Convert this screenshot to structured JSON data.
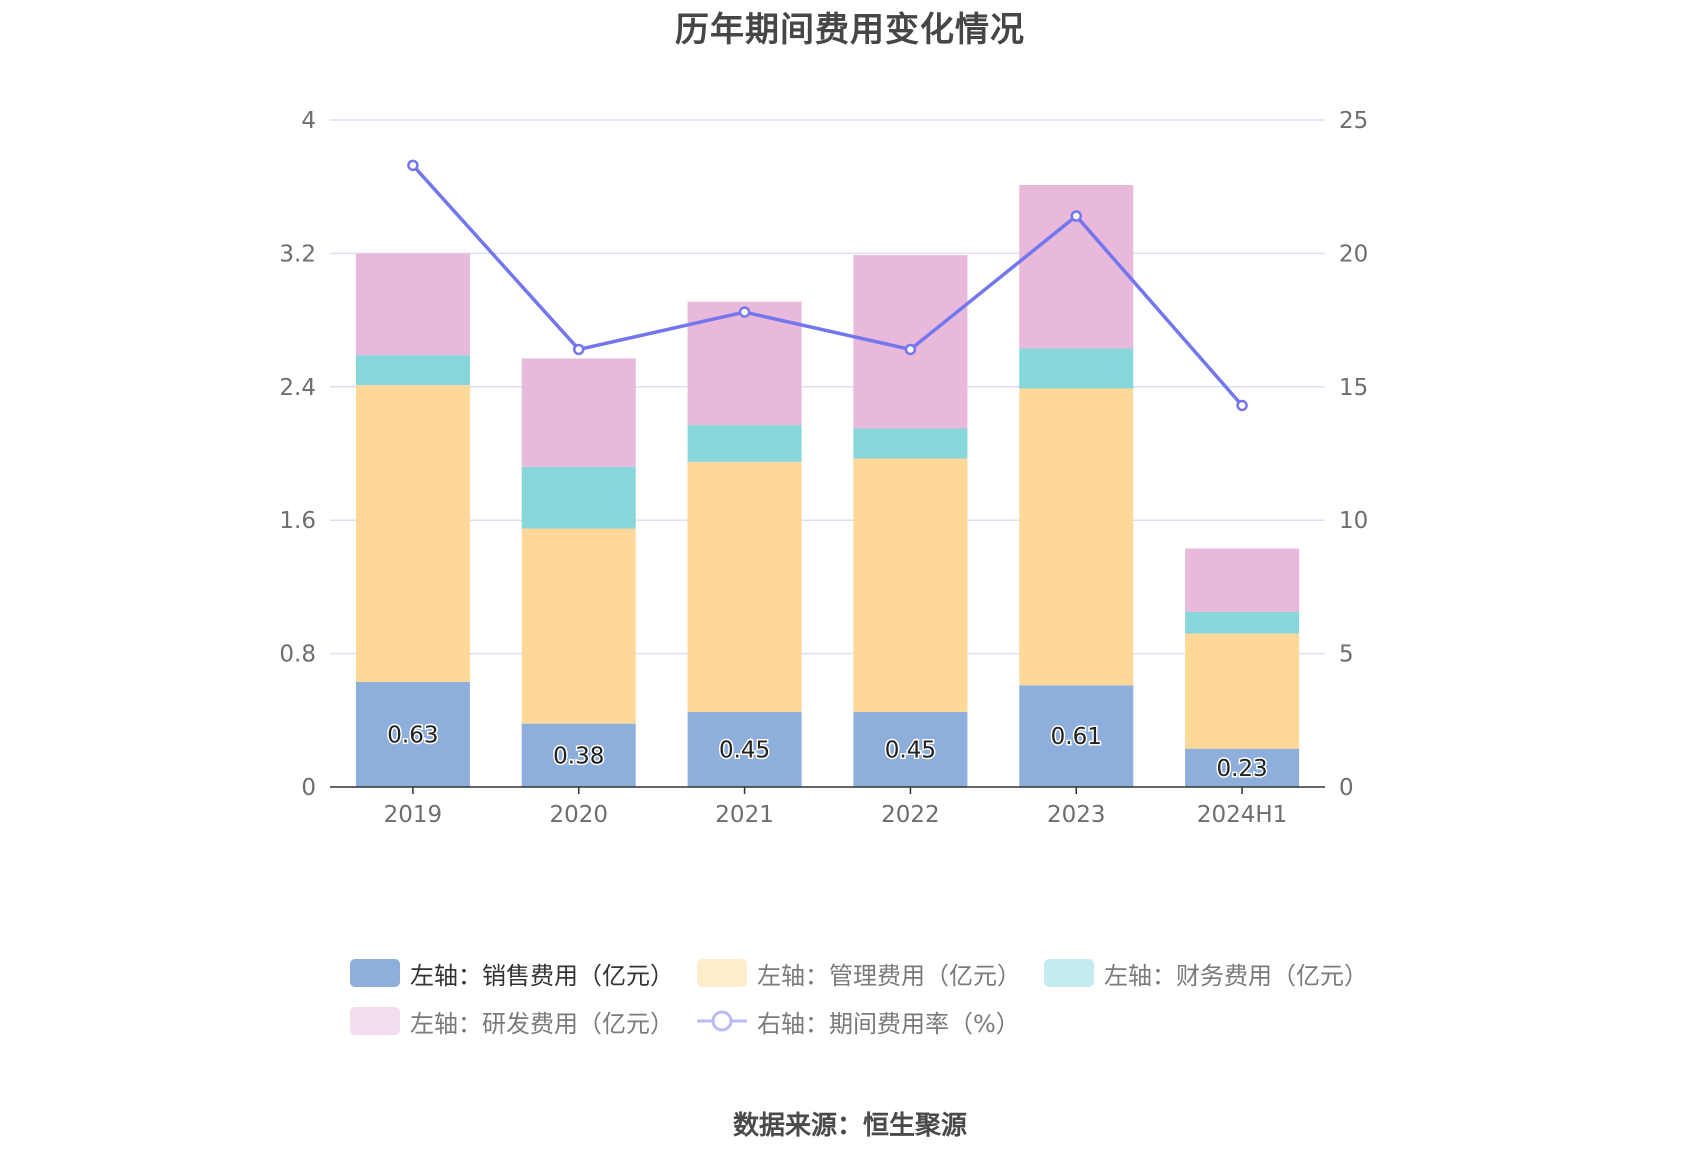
{
  "title": "历年期间费用变化情况",
  "source": "数据来源：恒生聚源",
  "colors": {
    "sales": "#8eaedb",
    "admin": "#fed899",
    "finance": "#87d6da",
    "rd": "#e8b9da",
    "rate": "#7476ee",
    "grid": "#dcdff5",
    "axis": "#333333"
  },
  "chart_data": {
    "type": "bar",
    "stacked": true,
    "categories": [
      "2019",
      "2020",
      "2021",
      "2022",
      "2023",
      "2024H1"
    ],
    "y_left": {
      "ticks": [
        "0",
        "0.8",
        "1.6",
        "2.4",
        "3.2",
        "4"
      ],
      "min": 0,
      "max": 4
    },
    "y_right": {
      "ticks": [
        "0",
        "5",
        "10",
        "15",
        "20",
        "25"
      ],
      "min": 0,
      "max": 25
    },
    "grid": true,
    "legend_placement": "bottom",
    "series": [
      {
        "name": "左轴：销售费用（亿元）",
        "axis": "left",
        "type": "bar",
        "values": [
          0.63,
          0.38,
          0.45,
          0.45,
          0.61,
          0.23
        ],
        "labels": [
          "0.63",
          "0.38",
          "0.45",
          "0.45",
          "0.61",
          "0.23"
        ]
      },
      {
        "name": "左轴：管理费用（亿元）",
        "axis": "left",
        "type": "bar",
        "values": [
          1.78,
          1.17,
          1.5,
          1.52,
          1.78,
          0.69
        ]
      },
      {
        "name": "左轴：财务费用（亿元）",
        "axis": "left",
        "type": "bar",
        "values": [
          0.18,
          0.37,
          0.22,
          0.18,
          0.24,
          0.13
        ]
      },
      {
        "name": "左轴：研发费用（亿元）",
        "axis": "left",
        "type": "bar",
        "values": [
          0.61,
          0.65,
          0.74,
          1.04,
          0.98,
          0.38
        ]
      },
      {
        "name": "右轴：期间费用率（%）",
        "axis": "right",
        "type": "line",
        "values": [
          23.3,
          16.4,
          17.8,
          16.4,
          21.4,
          14.3
        ]
      }
    ]
  }
}
